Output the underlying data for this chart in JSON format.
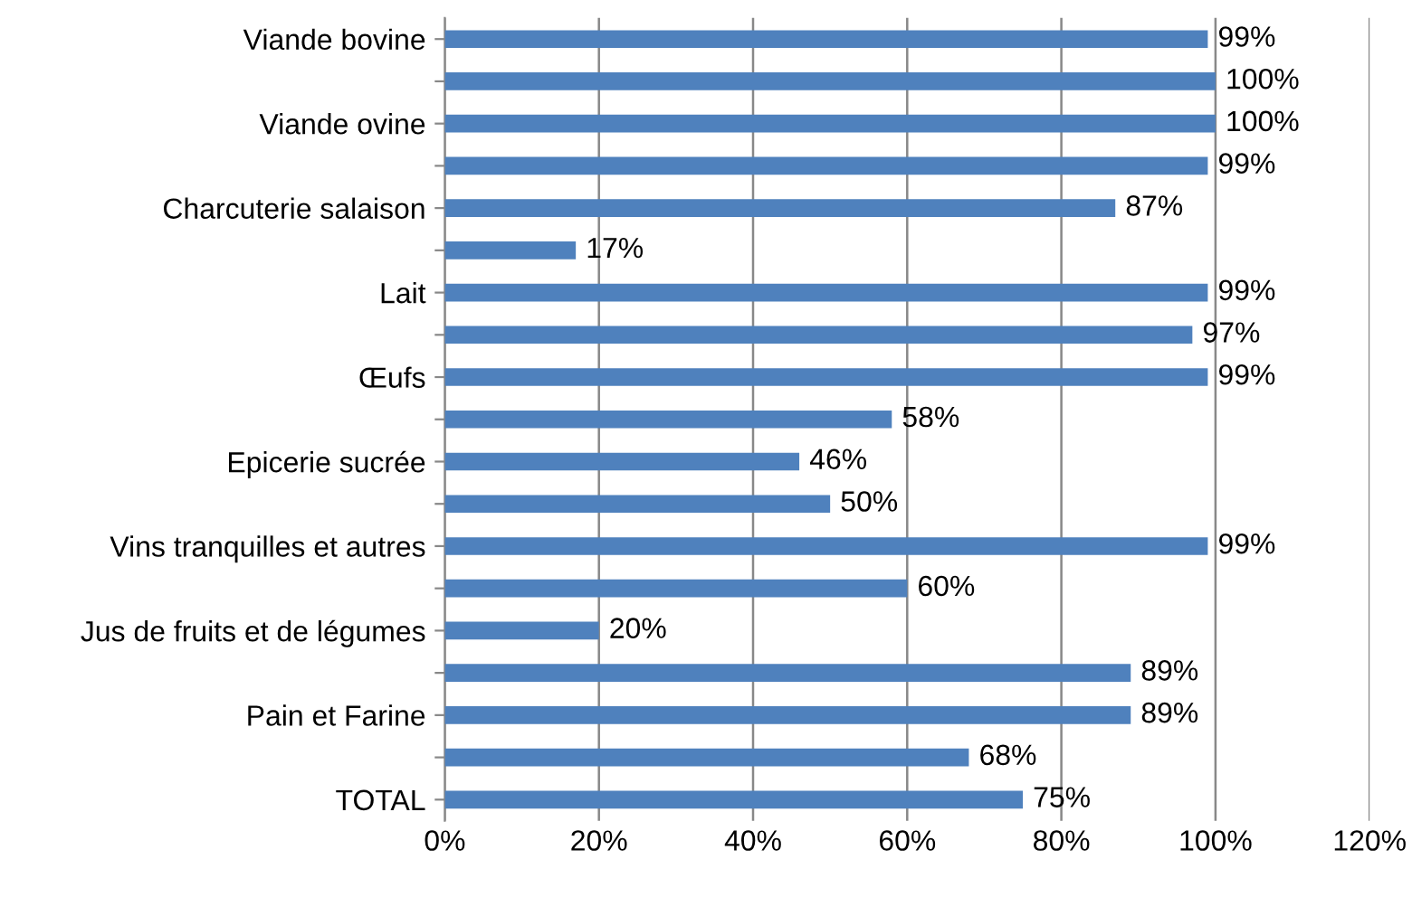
{
  "chart_data": {
    "type": "bar",
    "orientation": "horizontal",
    "categories": [
      "Viande bovine",
      null,
      "Viande ovine",
      null,
      "Charcuterie salaison",
      null,
      "Lait",
      null,
      "Œufs",
      null,
      "Epicerie sucrée",
      null,
      "Vins tranquilles et autres",
      null,
      "Jus de fruits et de légumes",
      null,
      "Pain et Farine",
      null,
      "TOTAL"
    ],
    "values": [
      99,
      100,
      100,
      99,
      87,
      17,
      99,
      97,
      99,
      58,
      46,
      50,
      99,
      60,
      20,
      89,
      89,
      68,
      75
    ],
    "value_labels": [
      "99%",
      "100%",
      "100%",
      "99%",
      "87%",
      "17%",
      "99%",
      "97%",
      "99%",
      "58%",
      "46%",
      "50%",
      "99%",
      "60%",
      "20%",
      "89%",
      "89%",
      "68%",
      "75%"
    ],
    "color": "#4f81bd",
    "xlim": [
      0,
      120
    ],
    "xticks": [
      {
        "value": 0,
        "label": "0%"
      },
      {
        "value": 20,
        "label": "20%"
      },
      {
        "value": 40,
        "label": "40%"
      },
      {
        "value": 60,
        "label": "60%"
      },
      {
        "value": 80,
        "label": "80%"
      },
      {
        "value": 100,
        "label": "100%"
      },
      {
        "value": 120,
        "label": "120%"
      }
    ],
    "grid": "x",
    "legend": false
  }
}
